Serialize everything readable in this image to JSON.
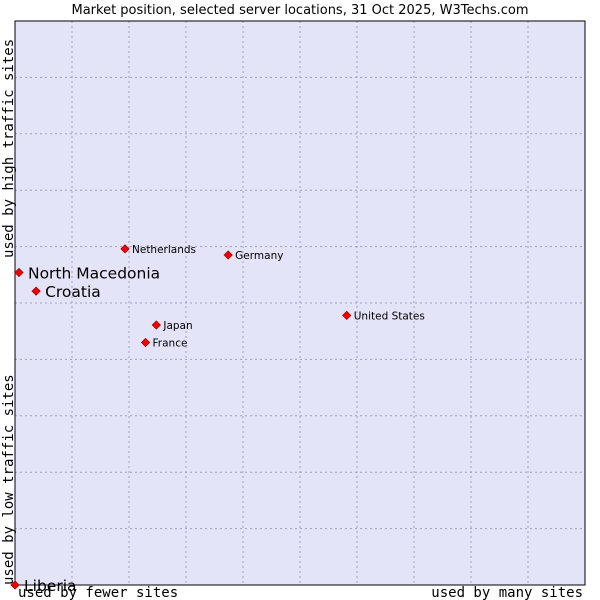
{
  "chart_data": {
    "type": "scatter",
    "title": "Market position, selected server locations, 31 Oct 2025, W3Techs.com",
    "xlabel_low": "used by fewer sites",
    "xlabel_high": "used by many sites",
    "ylabel_low": "used by low traffic sites",
    "ylabel_high": "used by high traffic sites",
    "xlim": [
      0,
      100
    ],
    "ylim": [
      0,
      100
    ],
    "grid": true,
    "background_color": "#e4e4f8",
    "grid_color": "#a0a0b8",
    "point_color": "#ee0000",
    "points": [
      {
        "name": "Netherlands",
        "x": 19.3,
        "y": 59.6,
        "label_size": "small"
      },
      {
        "name": "Germany",
        "x": 37.4,
        "y": 58.5,
        "label_size": "small"
      },
      {
        "name": "North Macedonia",
        "x": 0.7,
        "y": 55.4,
        "label_size": "large"
      },
      {
        "name": "Croatia",
        "x": 3.7,
        "y": 52.1,
        "label_size": "large"
      },
      {
        "name": "United States",
        "x": 58.2,
        "y": 47.8,
        "label_size": "small"
      },
      {
        "name": "Japan",
        "x": 24.8,
        "y": 46.1,
        "label_size": "small"
      },
      {
        "name": "France",
        "x": 22.9,
        "y": 43.0,
        "label_size": "small"
      },
      {
        "name": "Liberia",
        "x": 0.0,
        "y": 0.0,
        "label_size": "large"
      }
    ]
  }
}
